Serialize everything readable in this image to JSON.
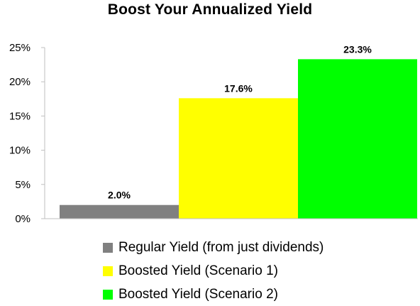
{
  "chart_data": {
    "type": "bar",
    "title": "Boost Your Annualized Yield",
    "xlabel": "",
    "ylabel": "",
    "ylim": [
      0,
      25
    ],
    "yticks": [
      0,
      5,
      10,
      15,
      20,
      25
    ],
    "ytick_labels": [
      "0%",
      "5%",
      "10%",
      "15%",
      "20%",
      "25%"
    ],
    "grid": false,
    "legend_position": "bottom",
    "series": [
      {
        "name": "Regular Yield (from just dividends)",
        "value": 2.0,
        "label": "2.0%",
        "color": "#808080"
      },
      {
        "name": "Boosted Yield (Scenario 1)",
        "value": 17.6,
        "label": "17.6%",
        "color": "#ffff00"
      },
      {
        "name": "Boosted Yield (Scenario 2)",
        "value": 23.3,
        "label": "23.3%",
        "color": "#00ff00"
      }
    ]
  }
}
